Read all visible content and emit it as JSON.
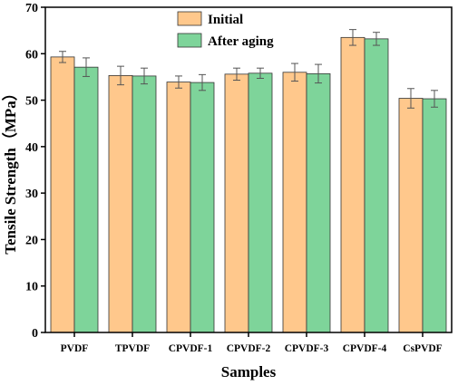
{
  "chart_data": {
    "type": "bar",
    "title": "",
    "xlabel": "Samples",
    "ylabel": "Tensile Strength（MPa）",
    "ylim": [
      0,
      70
    ],
    "yticks": [
      0,
      10,
      20,
      30,
      40,
      50,
      60,
      70
    ],
    "grid": false,
    "legend_position": "top-center",
    "error_bars": true,
    "categories": [
      "PVDF",
      "TPVDF",
      "CPVDF-1",
      "CPVDF-2",
      "CPVDF-3",
      "CPVDF-4",
      "CsPVDF"
    ],
    "series": [
      {
        "name": "Initial",
        "color": "#FFC88C",
        "values": [
          59.3,
          55.3,
          53.9,
          55.6,
          56.0,
          63.5,
          50.4
        ],
        "errors": [
          1.2,
          2.0,
          1.3,
          1.3,
          1.9,
          1.7,
          2.1
        ]
      },
      {
        "name": "After aging",
        "color": "#7ED49A",
        "values": [
          57.1,
          55.2,
          53.8,
          55.8,
          55.7,
          63.2,
          50.3
        ],
        "errors": [
          2.0,
          1.7,
          1.7,
          1.1,
          2.0,
          1.4,
          1.8
        ]
      }
    ]
  }
}
